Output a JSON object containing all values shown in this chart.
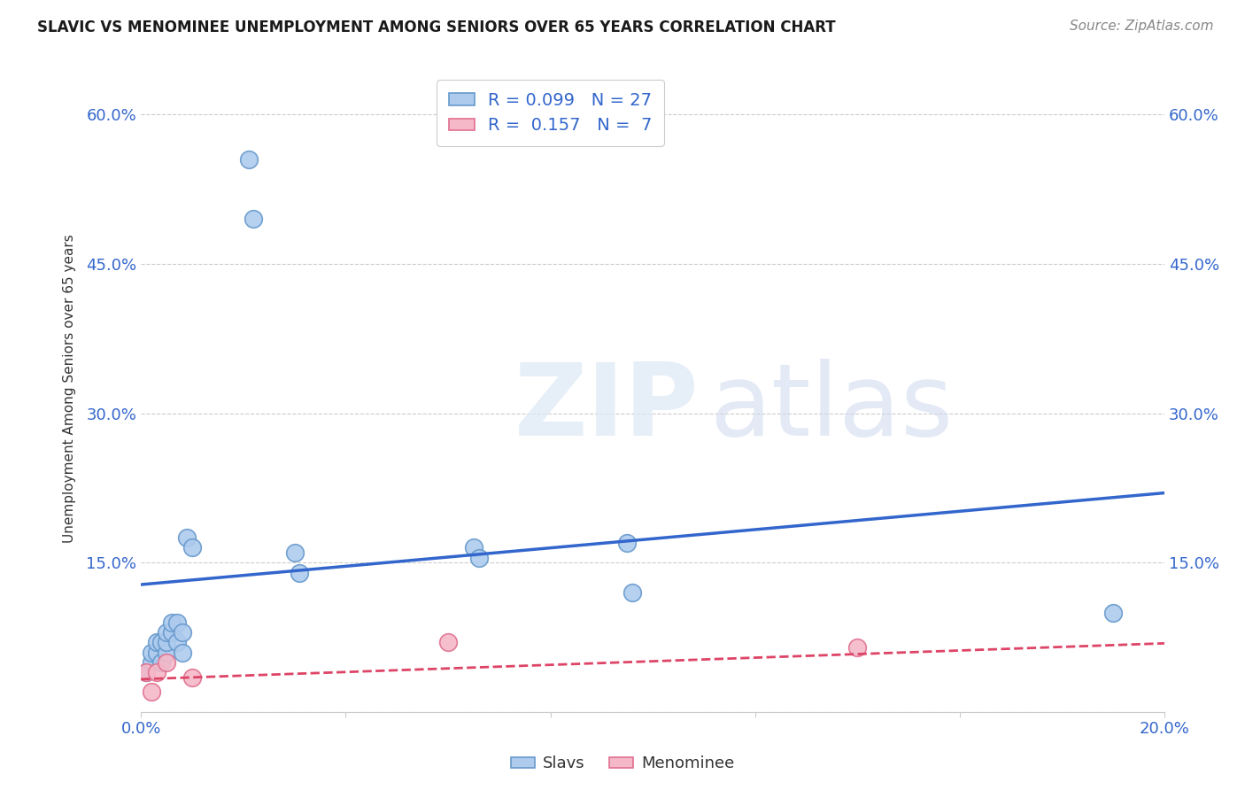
{
  "title": "SLAVIC VS MENOMINEE UNEMPLOYMENT AMONG SENIORS OVER 65 YEARS CORRELATION CHART",
  "source": "Source: ZipAtlas.com",
  "ylabel": "Unemployment Among Seniors over 65 years",
  "xlim": [
    0.0,
    0.2
  ],
  "ylim": [
    0.0,
    0.65
  ],
  "xticks": [
    0.0,
    0.04,
    0.08,
    0.12,
    0.16,
    0.2
  ],
  "yticks": [
    0.0,
    0.15,
    0.3,
    0.45,
    0.6
  ],
  "slavs_x": [
    0.001,
    0.002,
    0.002,
    0.003,
    0.003,
    0.004,
    0.004,
    0.005,
    0.005,
    0.005,
    0.006,
    0.006,
    0.007,
    0.007,
    0.008,
    0.008,
    0.009,
    0.01,
    0.021,
    0.022,
    0.03,
    0.031,
    0.065,
    0.066,
    0.095,
    0.096,
    0.19
  ],
  "slavs_y": [
    0.04,
    0.05,
    0.06,
    0.06,
    0.07,
    0.05,
    0.07,
    0.06,
    0.07,
    0.08,
    0.08,
    0.09,
    0.07,
    0.09,
    0.06,
    0.08,
    0.175,
    0.165,
    0.555,
    0.495,
    0.16,
    0.14,
    0.165,
    0.155,
    0.17,
    0.12,
    0.1
  ],
  "menominee_x": [
    0.001,
    0.002,
    0.003,
    0.005,
    0.01,
    0.06,
    0.14
  ],
  "menominee_y": [
    0.04,
    0.02,
    0.04,
    0.05,
    0.035,
    0.07,
    0.065
  ],
  "slavs_color": "#aecbee",
  "slavs_edge_color": "#6699cc",
  "menominee_color": "#f5b8c8",
  "menominee_edge_color": "#e07090",
  "slavs_line_color": "#3366cc",
  "menominee_line_color": "#dd4466",
  "slavs_line_intercept": 0.128,
  "slavs_line_slope": 0.46,
  "menominee_line_intercept": 0.033,
  "menominee_line_slope": 0.18,
  "slavs_R": "0.099",
  "slavs_N": "27",
  "menominee_R": "0.157",
  "menominee_N": "7",
  "background_color": "#ffffff",
  "grid_color": "#cccccc"
}
